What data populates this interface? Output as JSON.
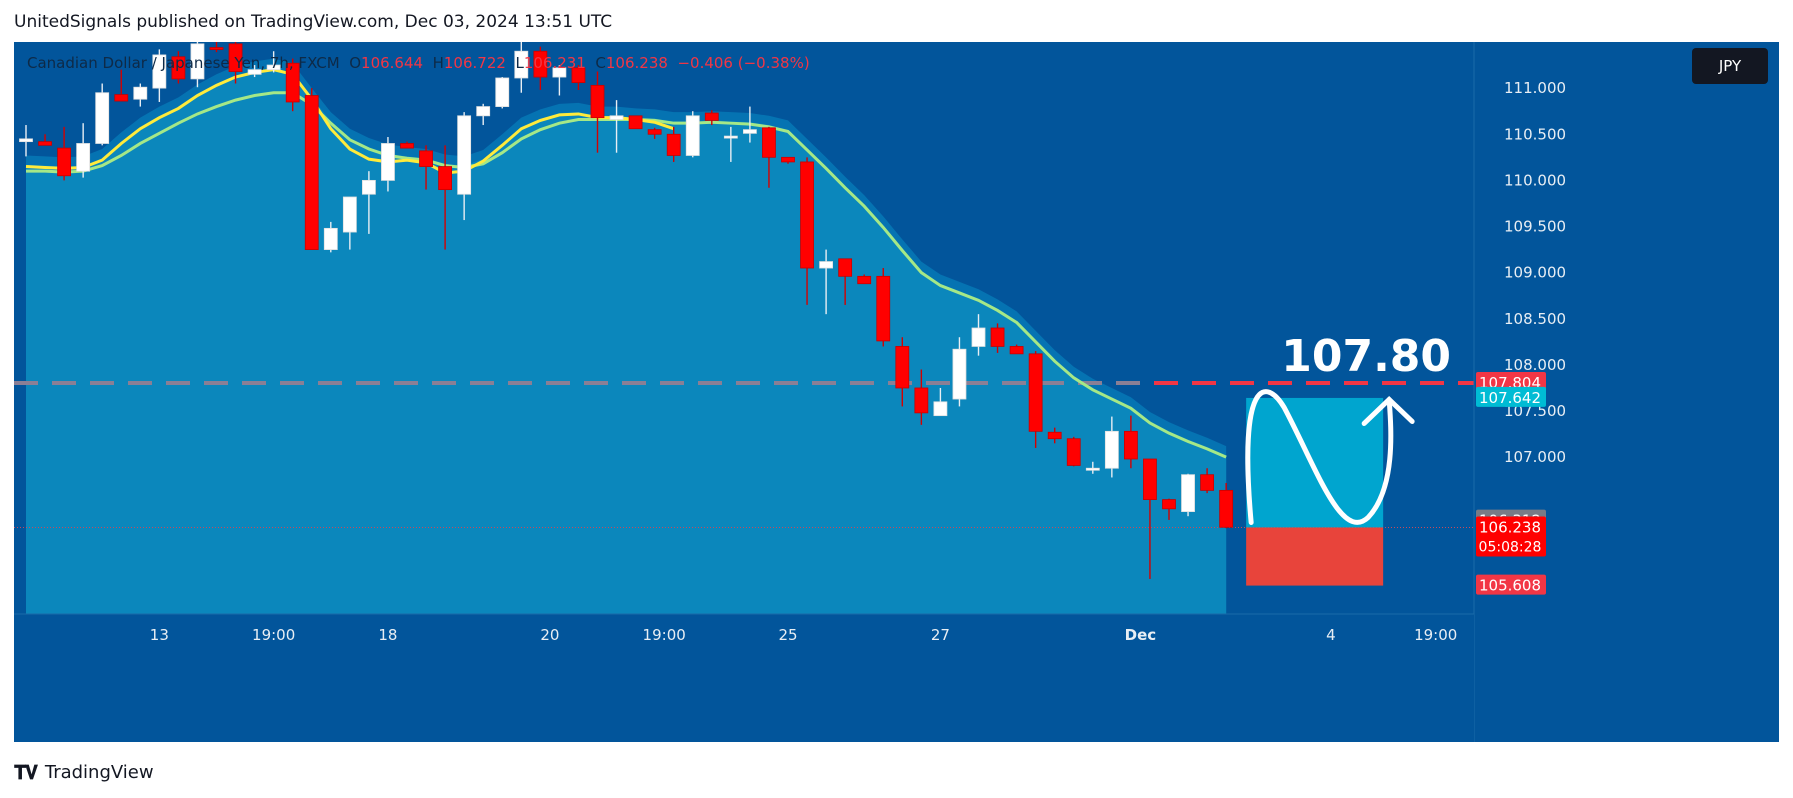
{
  "header": {
    "publisher_line": "UnitedSignals published on TradingView.com, Dec 03, 2024 13:51 UTC"
  },
  "legend": {
    "symbol": "Canadian Dollar / Japanese Yen, 7h, FXCM",
    "o_label": "O",
    "o_value": "106.644",
    "h_label": "H",
    "h_value": "106.722",
    "l_label": "L",
    "l_value": "106.231",
    "c_label": "C",
    "c_value": "106.238",
    "change": "−0.406 (−0.38%)"
  },
  "currency_badge": "JPY",
  "footer": {
    "brand": "TradingView",
    "logo_icon": "tradingview-logo-icon"
  },
  "annotation": {
    "target_text": "107.80"
  },
  "colors": {
    "up": "#ffffff",
    "down": "#ff0000",
    "ema_fast": "#ffeb3b",
    "ema_slow": "#a5e887",
    "bg": "#02559b",
    "cloud": "#0b87bc",
    "target_line": "#f23645"
  },
  "chart_data": {
    "type": "candlestick",
    "title": "Canadian Dollar / Japanese Yen, 7h, FXCM",
    "ylim": [
      105.3,
      111.5
    ],
    "x_ticks": [
      {
        "i": 7,
        "label": "13"
      },
      {
        "i": 13,
        "label": "19:00"
      },
      {
        "i": 19,
        "label": "18"
      },
      {
        "i": 27.5,
        "label": "20"
      },
      {
        "i": 33.5,
        "label": "19:00"
      },
      {
        "i": 40,
        "label": "25"
      },
      {
        "i": 48,
        "label": "27"
      },
      {
        "i": 58.5,
        "label": "Dec"
      },
      {
        "i": 68.5,
        "label": "4"
      },
      {
        "i": 74,
        "label": "19:00"
      }
    ],
    "y_ticks": [
      "111.000",
      "110.500",
      "110.000",
      "109.500",
      "109.000",
      "108.500",
      "108.000",
      "107.500",
      "107.000"
    ],
    "price_labels": [
      {
        "value": 107.804,
        "label": "107.804",
        "bg": "#f23645"
      },
      {
        "value": 107.642,
        "label": "107.642",
        "bg": "#00bcd4"
      },
      {
        "value": 106.312,
        "label": "106.312",
        "bg": "#787b86"
      },
      {
        "value": 106.238,
        "label": "106.238",
        "sub": "05:08:28",
        "bg": "#ff0000"
      },
      {
        "value": 105.608,
        "label": "105.608",
        "bg": "#f23645"
      }
    ],
    "target_level": 107.804,
    "candles": [
      [
        110.42,
        110.6,
        110.26,
        110.45
      ],
      [
        110.42,
        110.5,
        110.38,
        110.38
      ],
      [
        110.35,
        110.58,
        110.0,
        110.05
      ],
      [
        110.1,
        110.62,
        110.03,
        110.4
      ],
      [
        110.4,
        111.05,
        110.38,
        110.95
      ],
      [
        110.93,
        111.2,
        110.86,
        110.86
      ],
      [
        110.88,
        111.05,
        110.8,
        111.01
      ],
      [
        111.0,
        111.42,
        110.85,
        111.36
      ],
      [
        111.34,
        111.4,
        111.05,
        111.1
      ],
      [
        111.1,
        111.53,
        111.01,
        111.48
      ],
      [
        111.44,
        111.56,
        111.39,
        111.42
      ],
      [
        111.48,
        111.53,
        111.05,
        111.18
      ],
      [
        111.15,
        111.25,
        111.12,
        111.2
      ],
      [
        111.2,
        111.4,
        111.17,
        111.25
      ],
      [
        111.27,
        111.32,
        110.75,
        110.85
      ],
      [
        110.92,
        111.0,
        109.25,
        109.25
      ],
      [
        109.25,
        109.55,
        109.22,
        109.48
      ],
      [
        109.44,
        109.8,
        109.25,
        109.82
      ],
      [
        109.85,
        110.1,
        109.42,
        110.0
      ],
      [
        110.0,
        110.47,
        109.88,
        110.4
      ],
      [
        110.4,
        110.42,
        110.35,
        110.35
      ],
      [
        110.32,
        110.38,
        109.9,
        110.15
      ],
      [
        110.15,
        110.38,
        109.25,
        109.9
      ],
      [
        109.85,
        110.74,
        109.57,
        110.7
      ],
      [
        110.7,
        110.83,
        110.6,
        110.8
      ],
      [
        110.8,
        111.12,
        110.78,
        111.11
      ],
      [
        111.11,
        111.9,
        110.95,
        111.4
      ],
      [
        111.4,
        111.45,
        110.98,
        111.12
      ],
      [
        111.12,
        111.25,
        110.92,
        111.22
      ],
      [
        111.22,
        111.25,
        110.98,
        111.06
      ],
      [
        111.03,
        111.18,
        110.3,
        110.68
      ],
      [
        110.66,
        110.87,
        110.3,
        110.7
      ],
      [
        110.7,
        110.7,
        110.56,
        110.56
      ],
      [
        110.55,
        110.57,
        110.45,
        110.5
      ],
      [
        110.5,
        110.58,
        110.2,
        110.27
      ],
      [
        110.27,
        110.75,
        110.25,
        110.7
      ],
      [
        110.73,
        110.76,
        110.6,
        110.65
      ],
      [
        110.46,
        110.58,
        110.2,
        110.48
      ],
      [
        110.51,
        110.8,
        110.41,
        110.55
      ],
      [
        110.57,
        110.58,
        109.92,
        110.25
      ],
      [
        110.25,
        110.25,
        110.18,
        110.2
      ],
      [
        110.2,
        110.25,
        108.65,
        109.05
      ],
      [
        109.05,
        109.25,
        108.55,
        109.12
      ],
      [
        109.15,
        109.15,
        108.65,
        108.96
      ],
      [
        108.96,
        108.98,
        108.88,
        108.88
      ],
      [
        108.96,
        109.05,
        108.2,
        108.26
      ],
      [
        108.2,
        108.3,
        107.55,
        107.75
      ],
      [
        107.75,
        107.95,
        107.35,
        107.48
      ],
      [
        107.45,
        107.75,
        107.45,
        107.6
      ],
      [
        107.63,
        108.3,
        107.55,
        108.17
      ],
      [
        108.2,
        108.55,
        108.1,
        108.4
      ],
      [
        108.4,
        108.45,
        108.13,
        108.2
      ],
      [
        108.2,
        108.22,
        108.12,
        108.12
      ],
      [
        108.12,
        108.15,
        107.1,
        107.28
      ],
      [
        107.27,
        107.32,
        107.15,
        107.2
      ],
      [
        107.2,
        107.22,
        106.9,
        106.91
      ],
      [
        106.88,
        106.95,
        106.82,
        106.88
      ],
      [
        106.88,
        107.44,
        106.78,
        107.28
      ],
      [
        107.28,
        107.45,
        106.88,
        106.98
      ],
      [
        106.98,
        106.98,
        105.68,
        106.54
      ],
      [
        106.54,
        106.55,
        106.32,
        106.44
      ],
      [
        106.41,
        106.82,
        106.36,
        106.81
      ],
      [
        106.81,
        106.88,
        106.61,
        106.64
      ],
      [
        106.64,
        106.72,
        106.23,
        106.24
      ]
    ],
    "ema_fast": [
      110.15,
      110.14,
      110.13,
      110.14,
      110.22,
      110.4,
      110.56,
      110.68,
      110.78,
      110.92,
      111.03,
      111.12,
      111.17,
      111.2,
      111.15,
      110.88,
      110.56,
      110.34,
      110.23,
      110.2,
      110.22,
      110.19,
      110.08,
      110.1,
      110.21,
      110.38,
      110.56,
      110.65,
      110.71,
      110.72,
      110.68,
      110.68,
      110.66,
      110.63,
      110.56,
      110.56,
      110.58,
      110.55,
      110.55,
      110.49,
      110.42,
      110.12,
      109.86,
      109.64,
      109.47,
      109.22,
      108.92,
      108.61,
      108.35,
      108.26,
      108.24,
      108.21,
      108.16,
      107.95,
      107.73,
      107.53,
      107.38,
      107.34,
      107.25,
      107.04,
      106.89,
      106.87,
      106.81,
      106.69
    ],
    "ema_slow": [
      110.1,
      110.1,
      110.09,
      110.1,
      110.16,
      110.27,
      110.4,
      110.51,
      110.62,
      110.72,
      110.8,
      110.87,
      110.92,
      110.95,
      110.95,
      110.82,
      110.62,
      110.44,
      110.34,
      110.27,
      110.24,
      110.22,
      110.16,
      110.14,
      110.18,
      110.3,
      110.45,
      110.55,
      110.62,
      110.66,
      110.66,
      110.66,
      110.66,
      110.65,
      110.62,
      110.62,
      110.63,
      110.62,
      110.61,
      110.58,
      110.53,
      110.33,
      110.13,
      109.92,
      109.72,
      109.49,
      109.24,
      109.0,
      108.86,
      108.78,
      108.7,
      108.59,
      108.46,
      108.25,
      108.04,
      107.86,
      107.73,
      107.63,
      107.53,
      107.37,
      107.26,
      107.17,
      107.09,
      107.0
    ]
  }
}
